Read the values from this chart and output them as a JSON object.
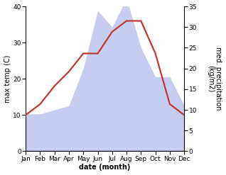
{
  "months": [
    "Jan",
    "Feb",
    "Mar",
    "Apr",
    "May",
    "Jun",
    "Jul",
    "Aug",
    "Sep",
    "Oct",
    "Nov",
    "Dec"
  ],
  "x": [
    1,
    2,
    3,
    4,
    5,
    6,
    7,
    8,
    9,
    10,
    11,
    12
  ],
  "temperature": [
    10,
    13,
    18,
    22,
    27,
    27,
    33,
    36,
    36,
    27,
    13,
    10
  ],
  "precipitation": [
    9,
    9,
    10,
    11,
    20,
    34,
    30,
    37,
    25,
    18,
    18,
    11
  ],
  "temp_color": "#c0392b",
  "precip_fill_color": "#c5cef0",
  "background_color": "#ffffff",
  "ylabel_left": "max temp (C)",
  "ylabel_right": "med. precipitation\n(kg/m2)",
  "xlabel": "date (month)",
  "ylim_left": [
    0,
    40
  ],
  "ylim_right": [
    0,
    35
  ],
  "yticks_left": [
    0,
    10,
    20,
    30,
    40
  ],
  "yticks_right": [
    0,
    5,
    10,
    15,
    20,
    25,
    30,
    35
  ],
  "label_fontsize": 7,
  "tick_fontsize": 6.5,
  "linewidth": 1.6
}
